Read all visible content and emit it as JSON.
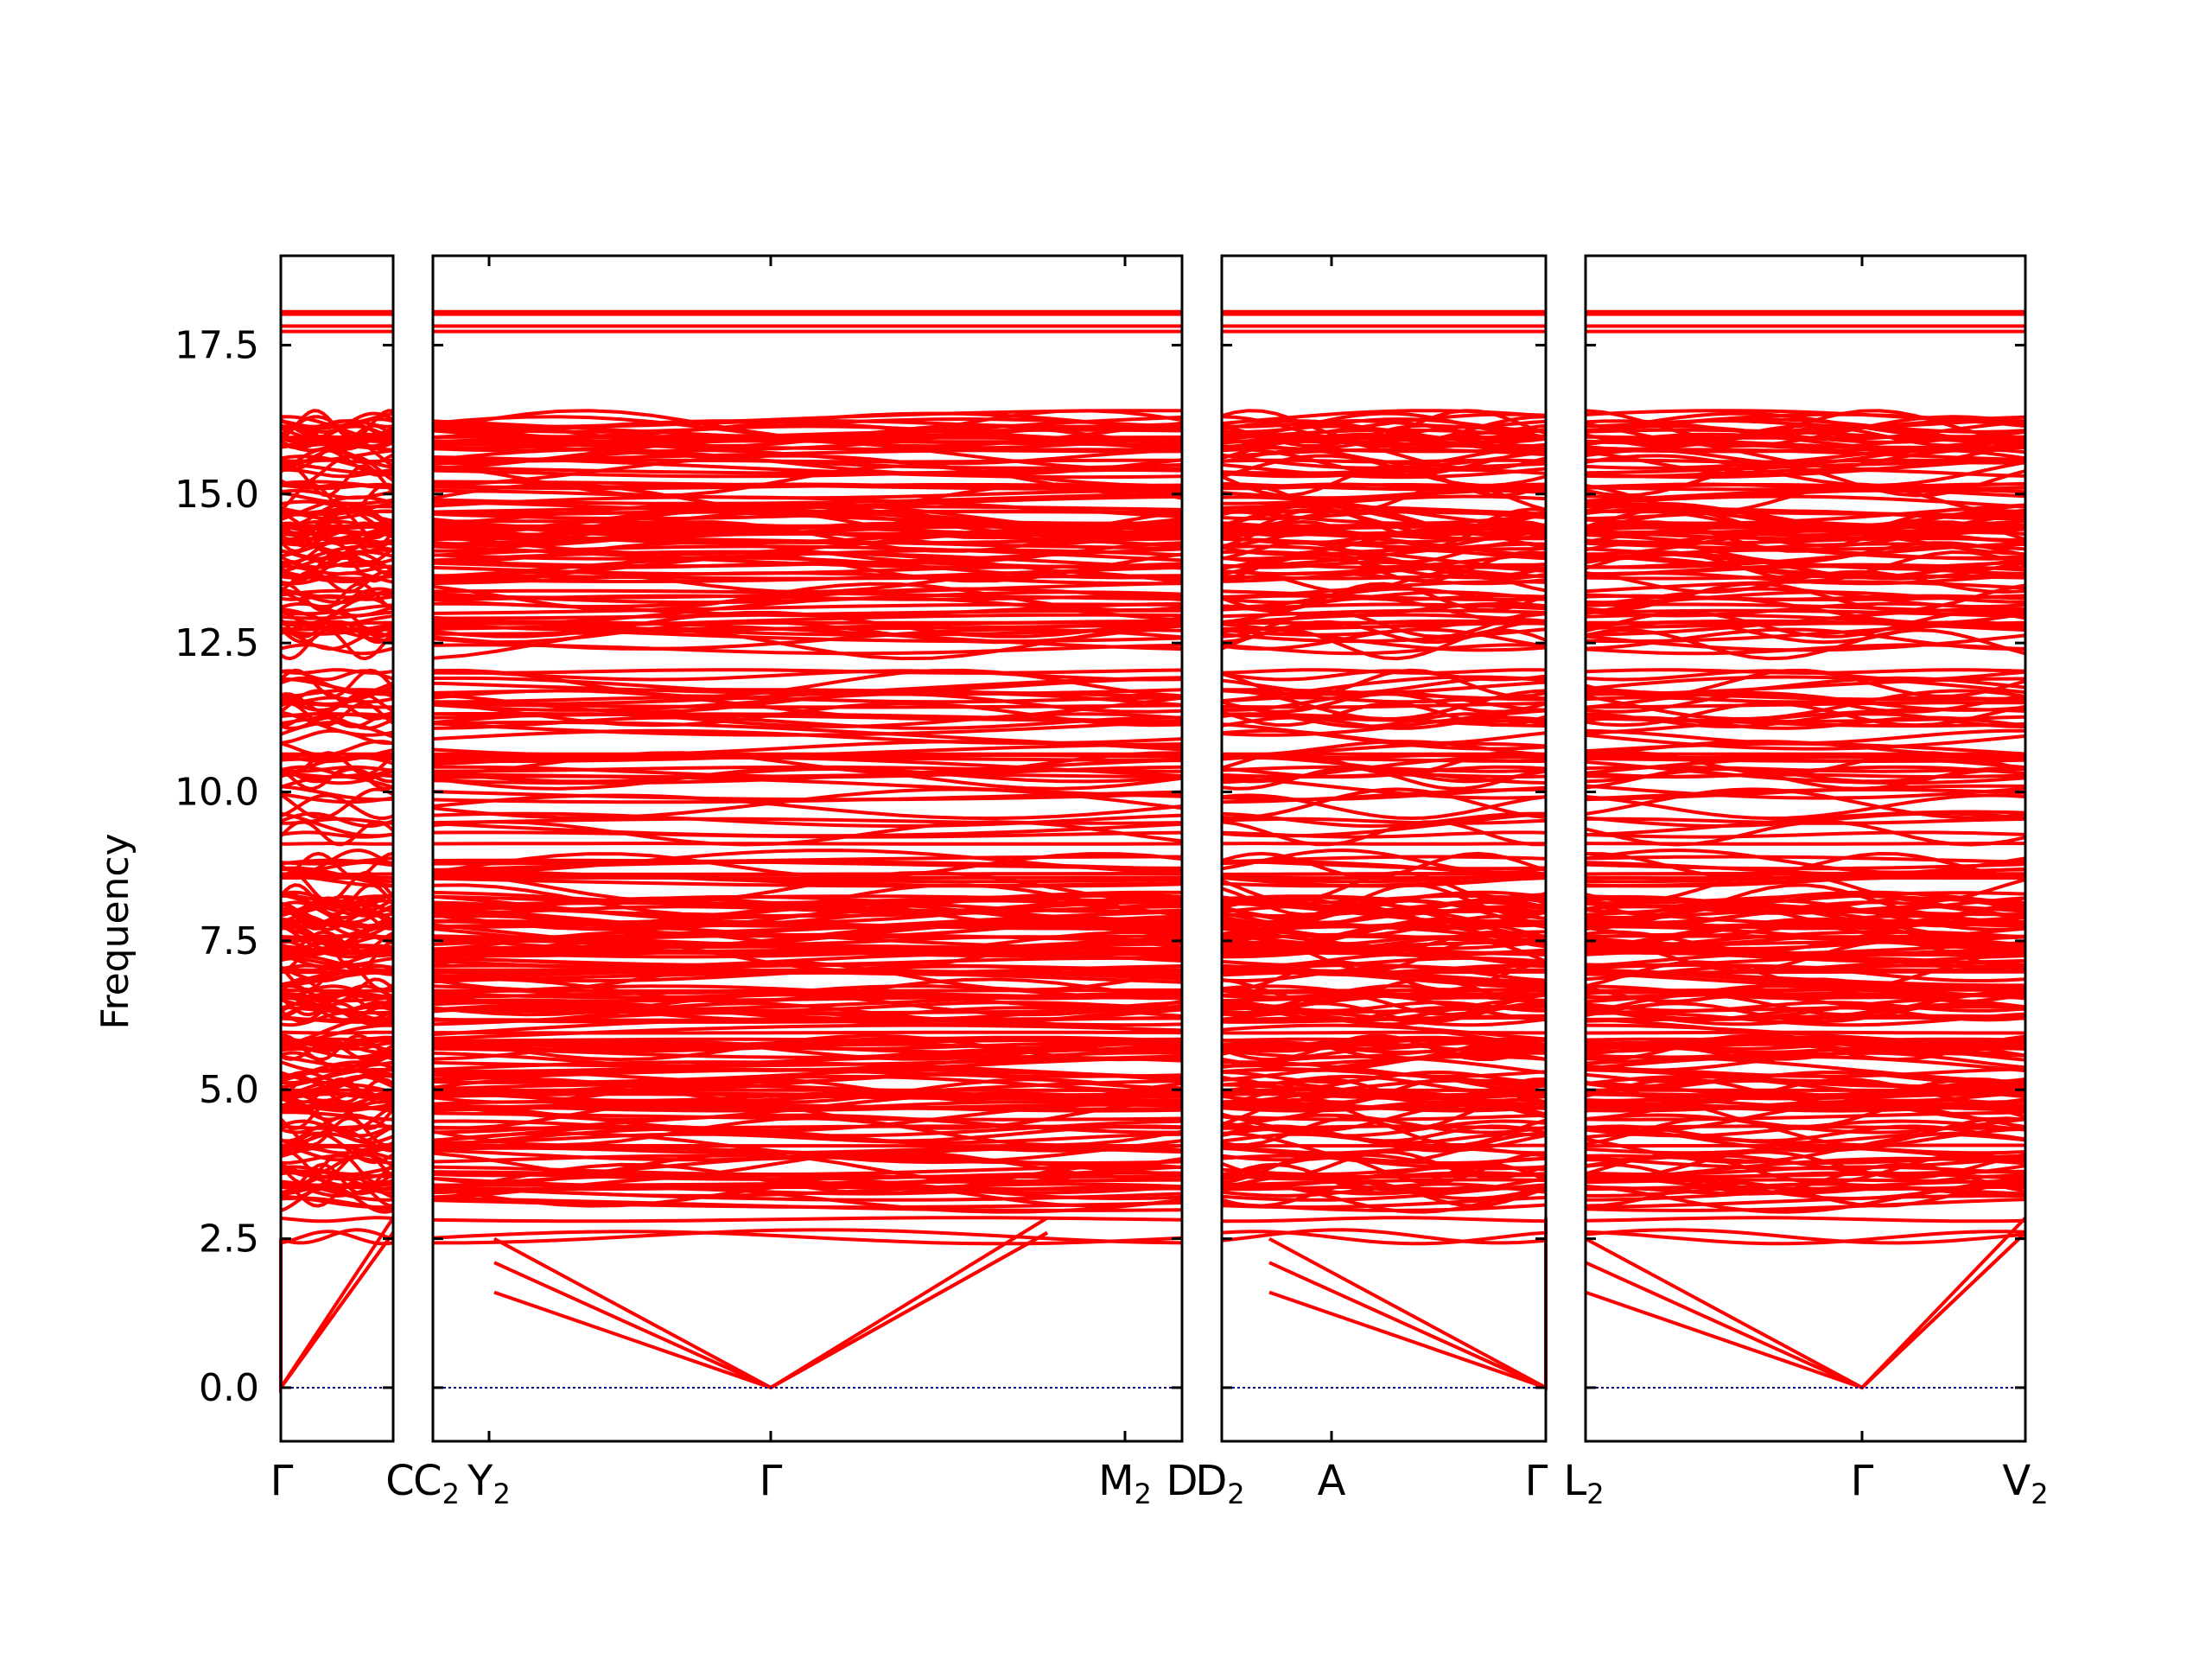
{
  "chart_data": {
    "type": "line",
    "ylabel": "Frequency",
    "ylim": [
      -0.9,
      19.0
    ],
    "yticks": [
      {
        "value": 0.0,
        "label": "0.0"
      },
      {
        "value": 2.5,
        "label": "2.5"
      },
      {
        "value": 5.0,
        "label": "5.0"
      },
      {
        "value": 7.5,
        "label": "7.5"
      },
      {
        "value": 10.0,
        "label": "10.0"
      },
      {
        "value": 12.5,
        "label": "12.5"
      },
      {
        "value": 15.0,
        "label": "15.0"
      },
      {
        "value": 17.5,
        "label": "17.5"
      }
    ],
    "line_color": "#ff0000",
    "zero_line_color": "#00008b",
    "high_point_bands": [
      17.73,
      17.82,
      18.02,
      18.06
    ],
    "segments": [
      {
        "from": "Γ",
        "to": "C",
        "points": [
          "Γ",
          "C"
        ]
      },
      {
        "from": "C₂",
        "to": "M₂",
        "points": [
          "C₂",
          "Y₂",
          "Γ",
          "M₂"
        ]
      },
      {
        "from": "D",
        "to": "Γ",
        "points": [
          "D₂",
          "A",
          "Γ"
        ]
      },
      {
        "from": "L₂",
        "to": "V₂",
        "points": [
          "L₂",
          "Γ",
          "V₂"
        ]
      }
    ],
    "kpoint_labels": [
      {
        "base": "Γ",
        "sub": ""
      },
      {
        "base": "C",
        "sub": ""
      },
      {
        "base": "C",
        "sub": "2"
      },
      {
        "base": "Y",
        "sub": "2"
      },
      {
        "base": "Γ",
        "sub": ""
      },
      {
        "base": "M",
        "sub": "2"
      },
      {
        "base": "D",
        "sub": ""
      },
      {
        "base": "D",
        "sub": "2"
      },
      {
        "base": "A",
        "sub": ""
      },
      {
        "base": "Γ",
        "sub": ""
      },
      {
        "base": "L",
        "sub": "2"
      },
      {
        "base": "Γ",
        "sub": ""
      },
      {
        "base": "V",
        "sub": "2"
      }
    ]
  }
}
